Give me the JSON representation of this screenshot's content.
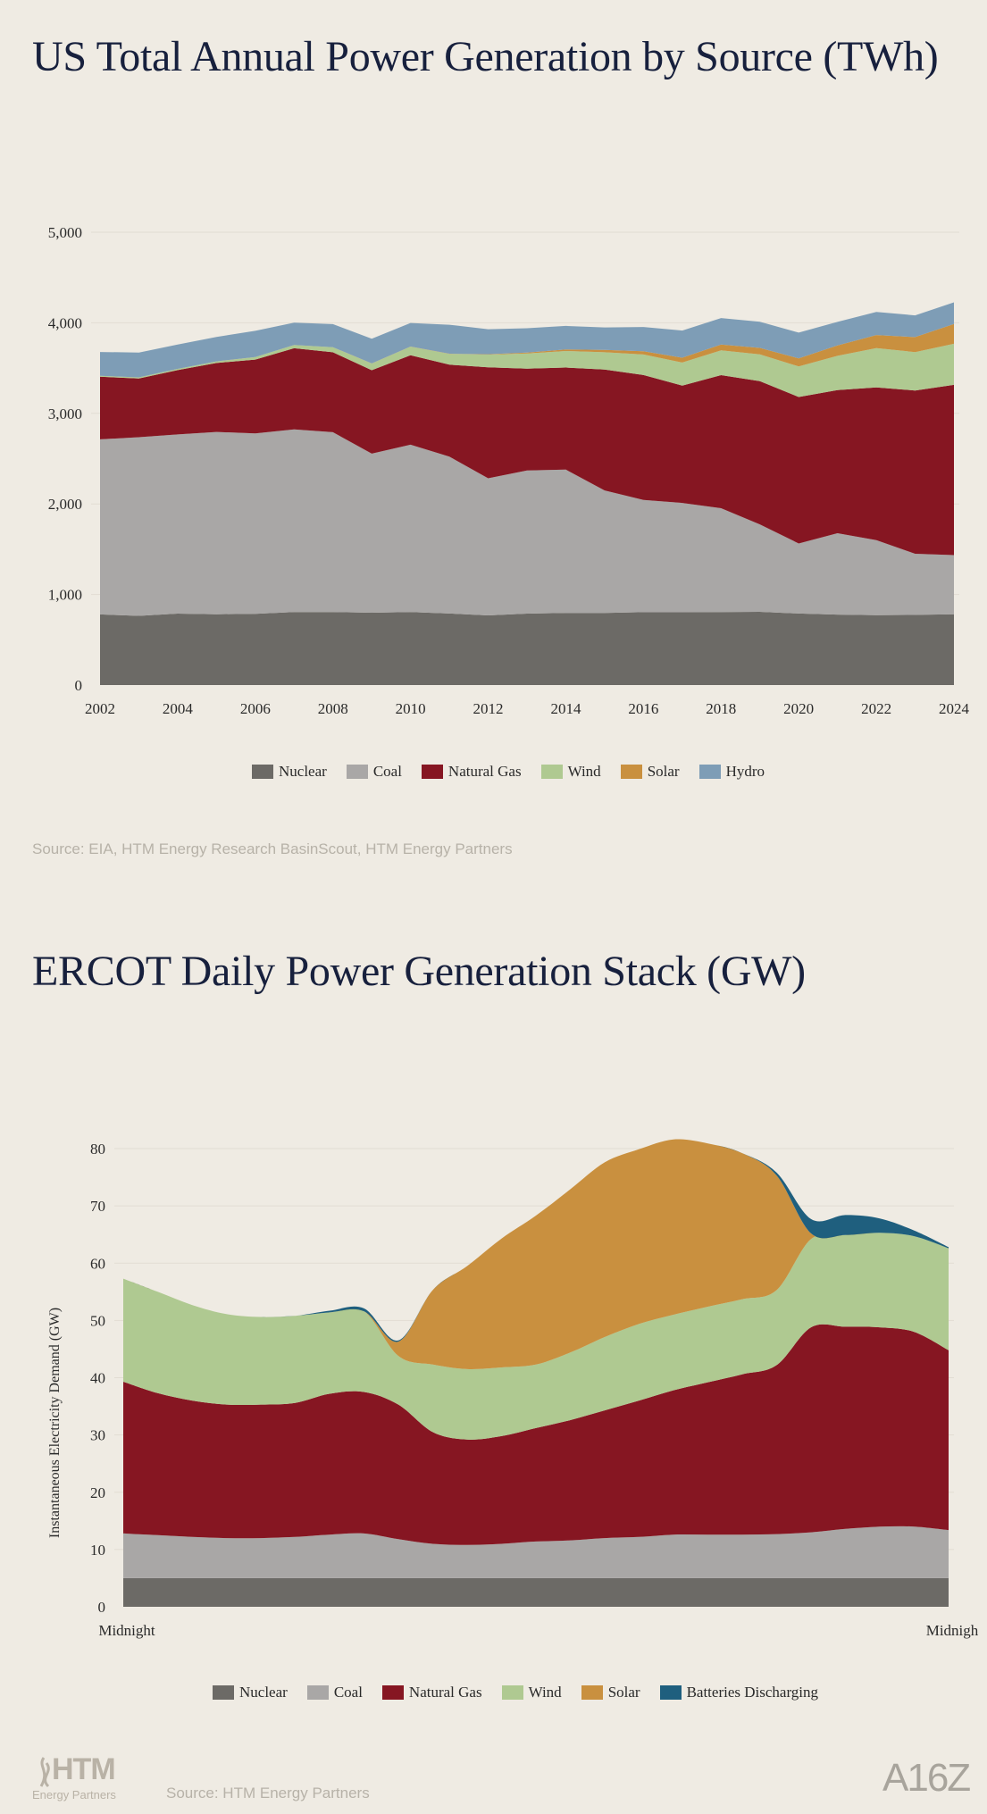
{
  "chart1": {
    "title": "US Total Annual Power Generation by Source (TWh)",
    "source": "Source: EIA, HTM Energy Research BasinScout, HTM Energy Partners"
  },
  "chart2": {
    "title": "ERCOT Daily Power Generation Stack (GW)",
    "source": "Source: HTM Energy Partners"
  },
  "logos": {
    "htm_main": "HTM",
    "htm_sub": "Energy Partners",
    "a16z": "A16Z"
  },
  "colors": {
    "Nuclear": "#6c6a66",
    "Coal": "#a9a7a6",
    "Natural Gas": "#861622",
    "Wind": "#afc991",
    "Solar": "#c9903f",
    "Hydro": "#7e9db6",
    "Batteries Discharging": "#1f5f7e"
  },
  "chart_data": [
    {
      "type": "area",
      "stacked": true,
      "title": "US Total Annual Power Generation by Source (TWh)",
      "xlabel": "",
      "ylabel": "",
      "x": [
        2002,
        2003,
        2004,
        2005,
        2006,
        2007,
        2008,
        2009,
        2010,
        2011,
        2012,
        2013,
        2014,
        2015,
        2016,
        2017,
        2018,
        2019,
        2020,
        2021,
        2022,
        2023,
        2024
      ],
      "x_ticks": [
        2002,
        2004,
        2006,
        2008,
        2010,
        2012,
        2014,
        2016,
        2018,
        2020,
        2022,
        2024
      ],
      "y_ticks": [
        0,
        1000,
        2000,
        3000,
        4000,
        5000
      ],
      "y_tick_labels": [
        "0",
        "1,000",
        "2,000",
        "3,000",
        "4,000",
        "5,000"
      ],
      "ylim": [
        0,
        5000
      ],
      "grid": true,
      "legend": "bottom-center",
      "series": [
        {
          "name": "Nuclear",
          "values": [
            780,
            764,
            789,
            782,
            787,
            806,
            806,
            799,
            807,
            790,
            769,
            789,
            797,
            797,
            805,
            805,
            807,
            809,
            790,
            778,
            772,
            775,
            782
          ]
        },
        {
          "name": "Coal",
          "values": [
            1933,
            1973,
            1978,
            2013,
            1991,
            2016,
            1986,
            1756,
            1847,
            1733,
            1514,
            1581,
            1582,
            1352,
            1239,
            1206,
            1146,
            965,
            773,
            899,
            828,
            675,
            653
          ]
        },
        {
          "name": "Natural Gas",
          "values": [
            691,
            649,
            710,
            761,
            816,
            897,
            883,
            921,
            988,
            1014,
            1226,
            1124,
            1127,
            1335,
            1379,
            1296,
            1469,
            1582,
            1617,
            1579,
            1687,
            1802,
            1880
          ]
        },
        {
          "name": "Wind",
          "values": [
            10,
            11,
            14,
            18,
            27,
            35,
            55,
            74,
            95,
            120,
            140,
            168,
            182,
            191,
            227,
            254,
            273,
            295,
            338,
            379,
            434,
            425,
            453
          ]
        },
        {
          "name": "Solar",
          "values": [
            0,
            0,
            0,
            0,
            1,
            1,
            1,
            1,
            1,
            2,
            4,
            9,
            18,
            25,
            36,
            53,
            64,
            72,
            89,
            115,
            144,
            165,
            218
          ]
        },
        {
          "name": "Hydro",
          "values": [
            264,
            275,
            268,
            270,
            289,
            247,
            254,
            273,
            260,
            319,
            276,
            269,
            259,
            249,
            268,
            300,
            293,
            288,
            285,
            260,
            255,
            240,
            240
          ]
        }
      ]
    },
    {
      "type": "area",
      "stacked": true,
      "title": "ERCOT Daily Power Generation Stack (GW)",
      "xlabel": "",
      "ylabel": "Instantaneous Electricity Demand (GW)",
      "x_tick_labels": [
        "Midnight",
        "Midnigh"
      ],
      "y_ticks": [
        0,
        10,
        20,
        30,
        40,
        50,
        60,
        70,
        80
      ],
      "ylim": [
        0,
        80
      ],
      "grid": true,
      "legend": "bottom-center",
      "x": [
        0,
        1,
        2,
        3,
        4,
        5,
        6,
        7,
        8,
        9,
        10,
        11,
        12,
        13,
        14,
        15,
        16,
        17,
        18,
        19,
        20,
        21,
        22,
        23,
        24
      ],
      "series": [
        {
          "name": "Nuclear",
          "values": [
            5,
            5,
            5,
            5,
            5,
            5,
            5,
            5,
            5,
            5,
            5,
            5,
            5,
            5,
            5,
            5,
            5,
            5,
            5,
            5,
            5,
            5,
            5,
            5,
            5
          ]
        },
        {
          "name": "Coal",
          "values": [
            7.8,
            7.5,
            7.2,
            7,
            7,
            7.2,
            7.6,
            7.8,
            6.8,
            6,
            5.8,
            6,
            6.4,
            6.6,
            7,
            7.2,
            7.6,
            7.6,
            7.6,
            7.7,
            8,
            8.6,
            9,
            9,
            8.4
          ]
        },
        {
          "name": "Natural Gas",
          "values": [
            26.5,
            24.8,
            23.8,
            23.3,
            23.3,
            23.4,
            24.6,
            24.7,
            23.5,
            19.5,
            18.4,
            18.8,
            19.8,
            21,
            22.3,
            23.8,
            25.2,
            26.6,
            28,
            29.5,
            35.8,
            35.3,
            34.8,
            34,
            31.4
          ]
        },
        {
          "name": "Wind",
          "values": [
            18,
            17.7,
            16.7,
            15.8,
            15.3,
            15.2,
            14.2,
            14.1,
            8.5,
            11.8,
            12.3,
            12,
            11.1,
            11.8,
            12.8,
            13.4,
            13.2,
            13.2,
            13.1,
            13.1,
            15.4,
            16,
            16.5,
            16.7,
            17.8
          ]
        },
        {
          "name": "Solar",
          "values": [
            0,
            0,
            0,
            0,
            0,
            0,
            0,
            0,
            2.5,
            13,
            18,
            22.5,
            26,
            28.5,
            30.5,
            30.5,
            30.6,
            28.5,
            25.5,
            20,
            1,
            0,
            0,
            0,
            0
          ]
        },
        {
          "name": "Batteries Discharging",
          "values": [
            0,
            0,
            0,
            0,
            0,
            0,
            0.3,
            0.5,
            0.2,
            0,
            0,
            0,
            0,
            0,
            0,
            0,
            0,
            0,
            0,
            0.5,
            2.5,
            3.5,
            2.5,
            1,
            0.2
          ]
        }
      ]
    }
  ]
}
